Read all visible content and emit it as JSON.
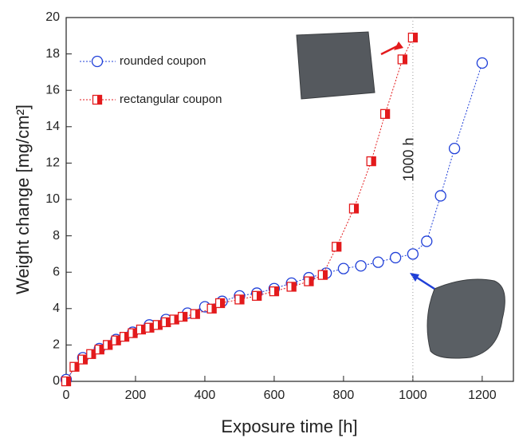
{
  "chart_data": {
    "type": "scatter",
    "xlabel": "Exposure time [h]",
    "ylabel": "Weight change [mg/cm²]",
    "xlim": [
      0,
      1290
    ],
    "ylim": [
      0,
      20
    ],
    "xticks": [
      0,
      200,
      400,
      600,
      800,
      1000,
      1200
    ],
    "yticks": [
      0,
      2,
      4,
      6,
      8,
      10,
      12,
      14,
      16,
      18,
      20
    ],
    "annotation": "1000 h",
    "vline": 1000,
    "series": [
      {
        "name": "rounded coupon",
        "color": "#1f3fd8",
        "marker": "circle",
        "x": [
          0,
          48,
          96,
          144,
          192,
          240,
          288,
          350,
          400,
          450,
          500,
          550,
          600,
          650,
          700,
          750,
          800,
          850,
          900,
          950,
          1000,
          1040,
          1080,
          1120,
          1200
        ],
        "values": [
          0.1,
          1.3,
          1.8,
          2.3,
          2.7,
          3.1,
          3.4,
          3.75,
          4.1,
          4.4,
          4.7,
          4.85,
          5.1,
          5.4,
          5.7,
          5.95,
          6.2,
          6.35,
          6.55,
          6.8,
          7.0,
          7.7,
          10.2,
          12.8,
          17.5
        ]
      },
      {
        "name": "rectangular coupon",
        "color": "#e31a1c",
        "marker": "half-square",
        "x": [
          0,
          24,
          48,
          72,
          96,
          120,
          144,
          168,
          192,
          216,
          240,
          264,
          288,
          312,
          336,
          372,
          420,
          444,
          500,
          550,
          600,
          650,
          700,
          740,
          780,
          830,
          880,
          920,
          970,
          1000
        ],
        "values": [
          0.0,
          0.8,
          1.2,
          1.5,
          1.75,
          2.0,
          2.25,
          2.45,
          2.65,
          2.85,
          2.95,
          3.1,
          3.25,
          3.4,
          3.55,
          3.7,
          4.0,
          4.3,
          4.5,
          4.7,
          4.95,
          5.2,
          5.5,
          5.85,
          7.4,
          9.5,
          12.1,
          14.7,
          17.7,
          18.9
        ]
      }
    ]
  }
}
